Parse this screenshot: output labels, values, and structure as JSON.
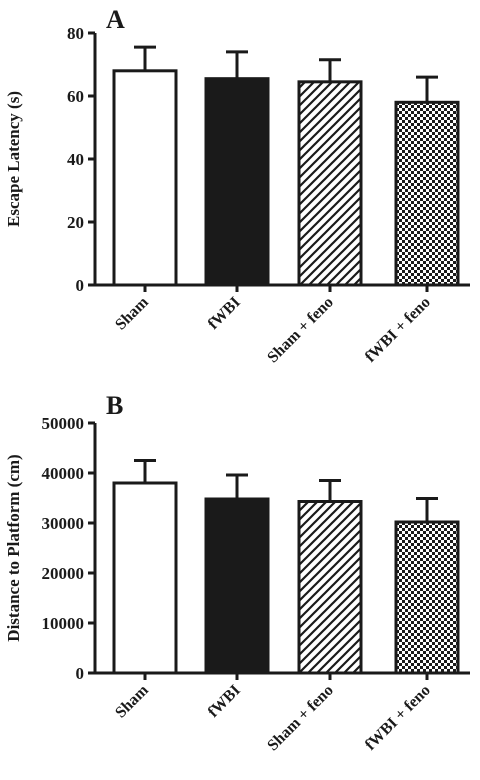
{
  "chart_data": [
    {
      "type": "bar",
      "panel": "A",
      "ylabel": "Escape Latency (s)",
      "ylim": [
        0,
        80
      ],
      "yticks": [
        0,
        20,
        40,
        60,
        80
      ],
      "categories": [
        "Sham",
        "fWBI",
        "Sham + feno",
        "fWBI + feno"
      ],
      "fills": [
        "white",
        "black",
        "diagonal-hatch",
        "checker"
      ],
      "values": [
        68,
        65.5,
        64.5,
        58
      ],
      "errors": [
        7.5,
        8.5,
        7,
        8
      ]
    },
    {
      "type": "bar",
      "panel": "B",
      "ylabel": "Distance to Platform (cm)",
      "ylim": [
        0,
        50000
      ],
      "yticks": [
        0,
        10000,
        20000,
        30000,
        40000,
        50000
      ],
      "categories": [
        "Sham",
        "fWBI",
        "Sham + feno",
        "fWBI + feno"
      ],
      "fills": [
        "white",
        "black",
        "diagonal-hatch",
        "checker"
      ],
      "values": [
        38000,
        34800,
        34300,
        30200
      ],
      "errors": [
        4500,
        4800,
        4200,
        4700
      ]
    }
  ]
}
